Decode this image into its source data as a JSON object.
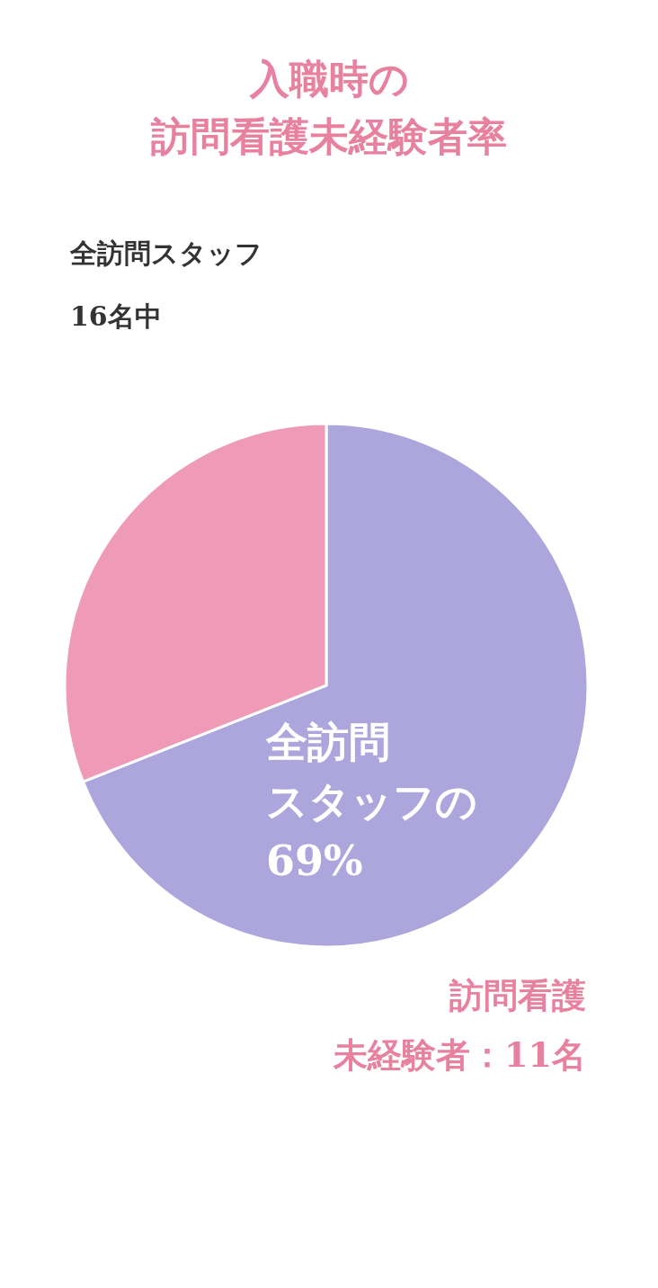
{
  "chart_data": {
    "type": "pie",
    "title": "入職時の訪問看護未経験者率",
    "subtitle": "全訪問スタッフ\n16名中",
    "categories": [
      null,
      null
    ],
    "values": [
      69,
      31
    ],
    "colors": [
      "#aca6dd",
      "#ef9ab7"
    ],
    "annotations": [
      "全訪問スタッフの69%",
      "訪問看護未経験者：11名"
    ]
  }
}
